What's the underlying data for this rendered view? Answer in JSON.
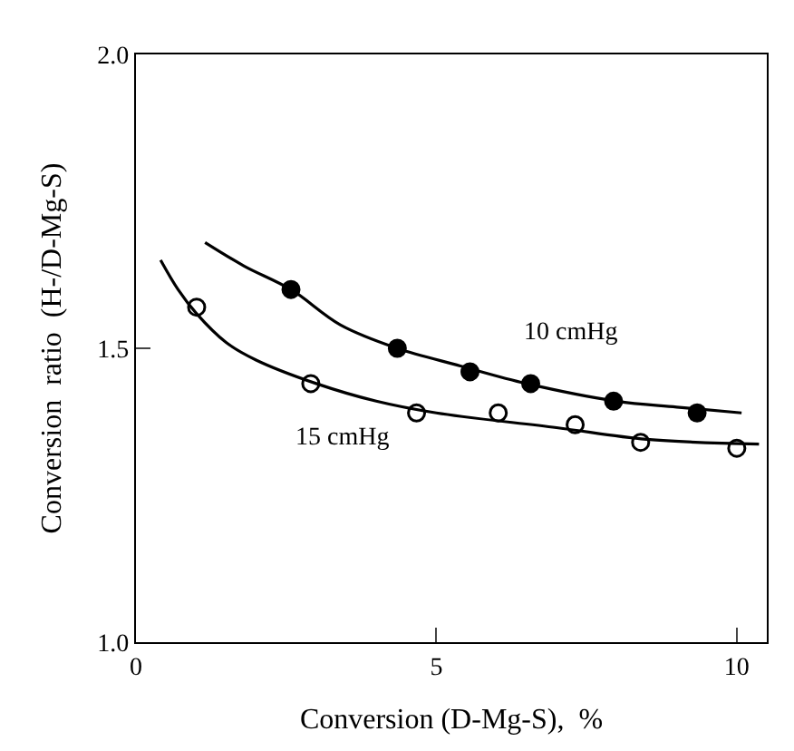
{
  "chart_data": {
    "type": "scatter",
    "xlabel": "Conversion (D-Mg-S),  %",
    "ylabel": "Conversion  ratio  (H-/D-Mg-S)",
    "xlim": [
      0,
      10.5
    ],
    "ylim": [
      1.0,
      2.0
    ],
    "xticks": [
      0,
      5,
      10
    ],
    "yticks": [
      {
        "value": 1.0,
        "label": "1.0"
      },
      {
        "value": 1.5,
        "label": "1.5"
      },
      {
        "value": 2.0,
        "label": "2.0"
      }
    ],
    "legend": false,
    "marker": "circle",
    "series": [
      {
        "name": "10 cmHg",
        "color": "#000000",
        "x": [
          2.58,
          4.35,
          5.56,
          6.57,
          7.95,
          9.34
        ],
        "values": [
          1.6,
          1.5,
          1.46,
          1.44,
          1.41,
          1.39
        ]
      },
      {
        "name": "15 cmHg",
        "color": "#ffffff",
        "x": [
          1.01,
          2.91,
          4.67,
          6.03,
          7.31,
          8.4,
          10.0
        ],
        "values": [
          1.57,
          1.44,
          1.39,
          1.39,
          1.37,
          1.34,
          1.33
        ]
      },
      {
        "type": "line",
        "color": "#000000",
        "marker": "none",
        "x": [
          1.15,
          1.8,
          2.58,
          3.4,
          4.35,
          5.4,
          6.5,
          8.0,
          9.0,
          10.08
        ],
        "values": [
          1.68,
          1.64,
          1.6,
          1.54,
          1.5,
          1.47,
          1.44,
          1.41,
          1.4,
          1.39
        ]
      },
      {
        "type": "line",
        "color": "#000000",
        "marker": "none",
        "x": [
          0.41,
          0.7,
          1.0,
          1.5,
          2.0,
          3.0,
          4.0,
          5.0,
          7.0,
          8.5,
          10.37
        ],
        "values": [
          1.65,
          1.6,
          1.56,
          1.51,
          1.48,
          1.44,
          1.41,
          1.39,
          1.365,
          1.345,
          1.337
        ]
      }
    ]
  }
}
